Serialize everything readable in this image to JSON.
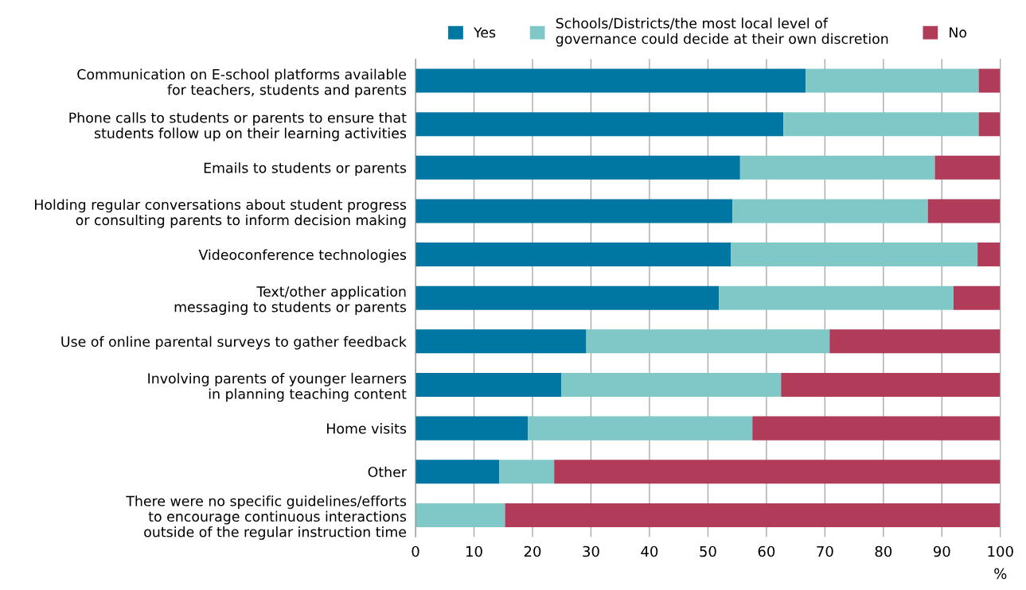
{
  "chart_data": {
    "type": "bar",
    "orientation": "horizontal",
    "stacked": true,
    "categories": [
      "Communication on E-school platforms available\nfor teachers, students and parents",
      "Phone calls to students or parents to ensure that\nstudents follow up on their learning activities",
      "Emails to students or parents",
      "Holding regular conversations about student progress\nor consulting parents to inform decision making",
      "Videoconference technologies",
      "Text/other application\nmessaging to students or parents",
      "Use of online parental surveys to gather feedback",
      "Involving parents of younger learners\nin planning teaching content",
      "Home visits",
      "Other",
      "There were no specific guidelines/efforts\nto encourage continuous interactions\noutside of the regular instruction time"
    ],
    "series": [
      {
        "name": "Yes",
        "color": "#0077a3",
        "values": [
          66.7,
          62.9,
          55.5,
          54.2,
          53.9,
          51.9,
          29.2,
          24.9,
          19.2,
          14.3,
          0
        ]
      },
      {
        "name": "Schools/Districts/the most local level of\ngovernance could decide at their own discretion",
        "color": "#80c8c7",
        "values": [
          29.6,
          33.4,
          33.3,
          33.4,
          42.2,
          40.1,
          41.6,
          37.6,
          38.4,
          9.4,
          15.3
        ]
      },
      {
        "name": "No",
        "color": "#b03c5a",
        "values": [
          3.7,
          3.7,
          11.2,
          12.4,
          3.9,
          8.0,
          29.2,
          37.5,
          42.4,
          76.3,
          84.7
        ]
      }
    ],
    "xlabel": "%",
    "xlim": [
      0,
      100
    ],
    "xticks": [
      0,
      10,
      20,
      30,
      40,
      50,
      60,
      70,
      80,
      90,
      100
    ],
    "grid": "x",
    "legend": "top"
  }
}
